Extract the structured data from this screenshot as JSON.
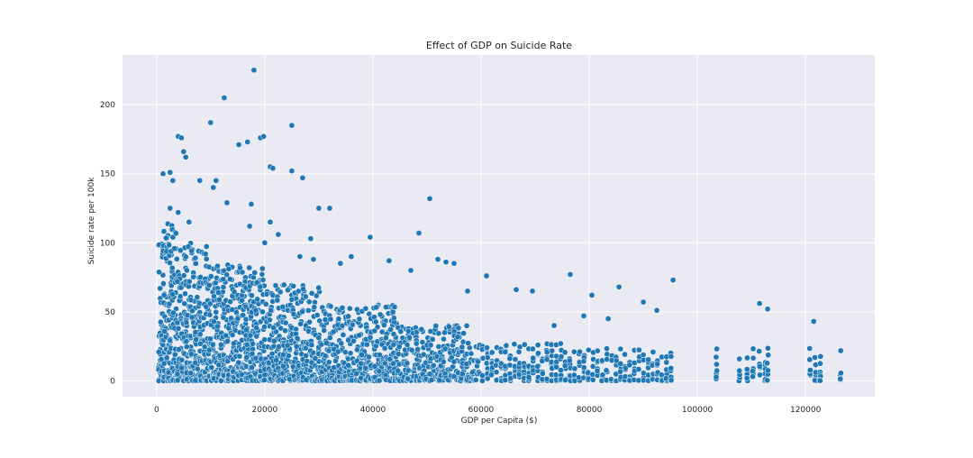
{
  "chart_data": {
    "type": "scatter",
    "title": "Effect of GDP on Suicide Rate",
    "xlabel": "GDP per Capita ($)",
    "ylabel": "Suicide rate per 100k",
    "xlim": [
      -6300,
      132800
    ],
    "ylim": [
      -11.5,
      236
    ],
    "xticks": [
      0,
      20000,
      40000,
      60000,
      80000,
      100000,
      120000
    ],
    "xtick_labels": [
      "0",
      "20000",
      "40000",
      "60000",
      "80000",
      "100000",
      "120000"
    ],
    "yticks": [
      0,
      50,
      100,
      150,
      200
    ],
    "ytick_labels": [
      "0",
      "50",
      "100",
      "150",
      "200"
    ],
    "grid": true,
    "legend": "none",
    "colors": {
      "point": "#1f77b4",
      "point_edge": "#ffffff",
      "plot_bg": "#eaeaf2",
      "grid": "#ffffff"
    },
    "series": [
      {
        "x": [
          18000,
          12500,
          10000,
          25000,
          16800,
          19200,
          19800,
          15200,
          4000,
          4600,
          5000,
          5400,
          21000,
          21500,
          1200,
          2500,
          27000,
          25000,
          3000,
          8000,
          11000,
          10500,
          30000,
          32000,
          13000,
          17500,
          21000,
          17200,
          2500,
          4000,
          6000,
          28500,
          22500,
          20000,
          39500,
          36000,
          26500,
          29000,
          34000,
          43000,
          48500,
          47000,
          50500,
          52000,
          53500,
          55000,
          57500,
          61000,
          66500,
          69500,
          76500,
          80500,
          85500,
          90000,
          92500,
          95500,
          111500,
          113000,
          121500,
          73500,
          79000,
          83500
        ],
        "y": [
          225,
          205,
          187,
          185,
          173,
          176,
          177,
          171,
          177,
          176,
          166,
          162,
          155,
          154,
          150,
          151,
          147,
          152,
          145,
          145,
          145,
          140,
          125,
          125,
          129,
          128,
          115,
          112,
          125,
          122,
          115,
          103,
          106,
          100,
          104,
          90,
          90,
          88,
          85,
          87,
          107,
          80,
          132,
          88,
          86,
          85,
          65,
          76,
          66,
          65,
          77,
          62,
          68,
          57,
          51,
          73,
          56,
          52,
          43,
          40,
          47,
          45
        ]
      }
    ]
  }
}
